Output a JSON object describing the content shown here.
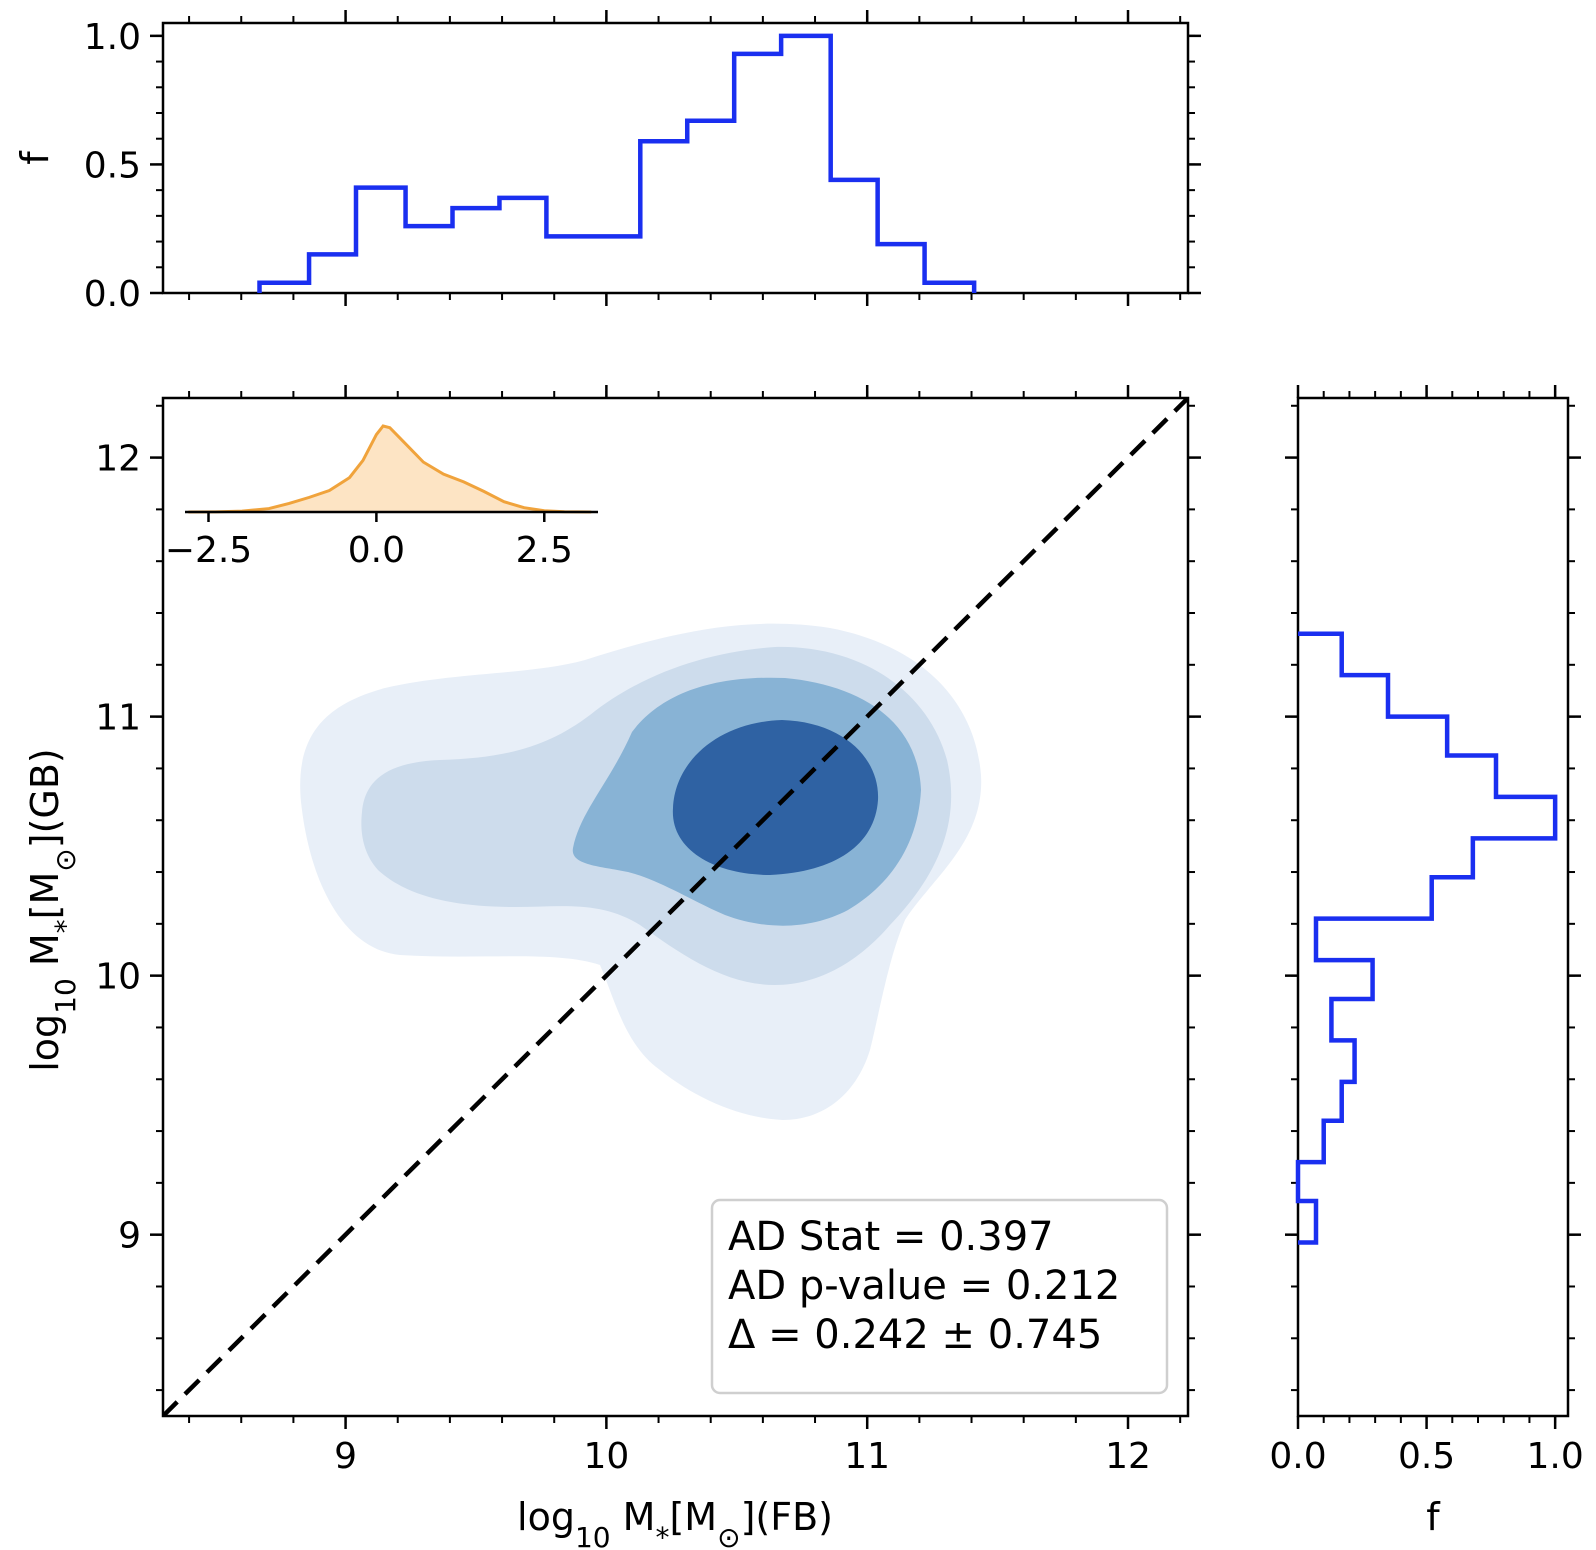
{
  "chart_data": [
    {
      "panel": "top-histogram",
      "type": "step",
      "ylabel": "f",
      "xlim": [
        8.3,
        12.23
      ],
      "ylim": [
        0,
        1.05
      ],
      "ytick_labels": [
        "0.0",
        "0.5",
        "1.0"
      ],
      "bin_edges": [
        8.67,
        8.86,
        9.04,
        9.23,
        9.41,
        9.59,
        9.77,
        9.95,
        10.13,
        10.31,
        10.49,
        10.67,
        10.86,
        11.04,
        11.22,
        11.41
      ],
      "values": [
        0.04,
        0.15,
        0.41,
        0.26,
        0.33,
        0.37,
        0.22,
        0.22,
        0.59,
        0.67,
        0.93,
        1.0,
        0.44,
        0.19,
        0.04
      ],
      "color": "#1a2ff0"
    },
    {
      "panel": "main-kde",
      "type": "contour",
      "xlabel_main": "log",
      "xlabel_sub": "10",
      "xlabel_rest": " M",
      "xlabel_star": "*",
      "xlabel_unit": "[M",
      "xlabel_sun": "⊙",
      "xlabel_suffix": "](FB)",
      "ylabel_main": "log",
      "ylabel_sub": "10",
      "ylabel_rest": " M",
      "ylabel_star": "*",
      "ylabel_unit": "[M",
      "ylabel_sun": "⊙",
      "ylabel_suffix": "](GB)",
      "xlim": [
        8.3,
        12.23
      ],
      "ylim": [
        8.3,
        12.23
      ],
      "xtick_labels": [
        "9",
        "10",
        "11",
        "12"
      ],
      "ytick_labels": [
        "9",
        "10",
        "11",
        "12"
      ],
      "contour_colors": [
        "#e8eff8",
        "#cddcec",
        "#88b3d5",
        "#2f62a3"
      ],
      "one_to_one_line": true
    },
    {
      "panel": "right-histogram",
      "type": "step",
      "xlabel": "f",
      "xlim": [
        0,
        1.05
      ],
      "ylim": [
        8.3,
        12.23
      ],
      "xtick_labels": [
        "0.0",
        "0.5",
        "1.0"
      ],
      "bin_edges": [
        8.97,
        9.13,
        9.28,
        9.44,
        9.59,
        9.75,
        9.91,
        10.06,
        10.22,
        10.38,
        10.53,
        10.69,
        10.85,
        11.0,
        11.16,
        11.32
      ],
      "values": [
        0.07,
        0.0,
        0.1,
        0.17,
        0.22,
        0.13,
        0.29,
        0.07,
        0.52,
        0.68,
        1.0,
        0.77,
        0.58,
        0.35,
        0.17
      ],
      "color": "#1a2ff0"
    },
    {
      "panel": "inset-kde",
      "type": "area",
      "xtick_labels": [
        "−2.5",
        "0.0",
        "2.5"
      ],
      "xlim": [
        -2.85,
        3.3
      ],
      "x": [
        -2.8,
        -2.4,
        -2.0,
        -1.6,
        -1.3,
        -1.0,
        -0.7,
        -0.4,
        -0.2,
        0.0,
        0.1,
        0.2,
        0.4,
        0.7,
        1.0,
        1.3,
        1.6,
        1.9,
        2.2,
        2.5,
        2.8,
        3.2
      ],
      "y": [
        0.0,
        0.002,
        0.01,
        0.04,
        0.1,
        0.17,
        0.25,
        0.4,
        0.6,
        0.9,
        1.0,
        0.98,
        0.82,
        0.58,
        0.44,
        0.35,
        0.24,
        0.12,
        0.05,
        0.015,
        0.003,
        0.0
      ],
      "fill": "#fde4c4",
      "line": "#f0a33c"
    }
  ],
  "stats_box": {
    "line1": "AD Stat = 0.397",
    "line2": "AD p-value = 0.212",
    "line3": "Δ = 0.242 ± 0.745"
  }
}
